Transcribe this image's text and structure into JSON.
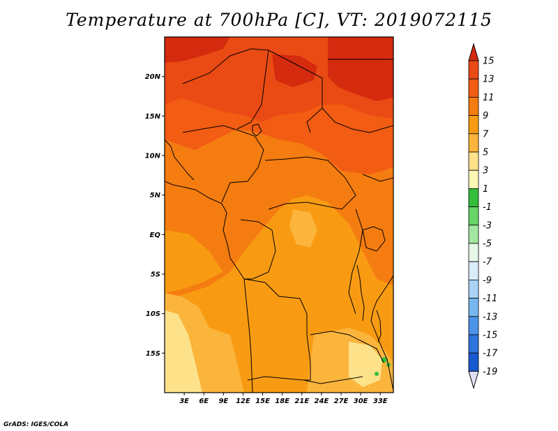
{
  "title": "Temperature at 700hPa [C], VT: 2019072115",
  "credit": "GrADS: IGES/COLA",
  "map": {
    "lon_range": [
      0,
      35
    ],
    "lat_range": [
      -20,
      25
    ],
    "lat_ticks": [
      {
        "lat": 20,
        "label": "20N"
      },
      {
        "lat": 15,
        "label": "15N"
      },
      {
        "lat": 10,
        "label": "10N"
      },
      {
        "lat": 5,
        "label": "5N"
      },
      {
        "lat": 0,
        "label": "EQ"
      },
      {
        "lat": -5,
        "label": "5S"
      },
      {
        "lat": -10,
        "label": "10S"
      },
      {
        "lat": -15,
        "label": "15S"
      }
    ],
    "lon_ticks": [
      {
        "lon": 3,
        "label": "3E"
      },
      {
        "lon": 6,
        "label": "6E"
      },
      {
        "lon": 9,
        "label": "9E"
      },
      {
        "lon": 12,
        "label": "12E"
      },
      {
        "lon": 15,
        "label": "15E"
      },
      {
        "lon": 18,
        "label": "18E"
      },
      {
        "lon": 21,
        "label": "21E"
      },
      {
        "lon": 24,
        "label": "24E"
      },
      {
        "lon": 27,
        "label": "27E"
      },
      {
        "lon": 30,
        "label": "30E"
      },
      {
        "lon": 33,
        "label": "33E"
      }
    ]
  },
  "colorbar": {
    "labels": [
      "15",
      "13",
      "11",
      "9",
      "7",
      "5",
      "3",
      "1",
      "-1",
      "-3",
      "-5",
      "-7",
      "-9",
      "-11",
      "-13",
      "-15",
      "-17",
      "-19"
    ],
    "top_arrow_color": "#d42a0e",
    "bottom_arrow_color": "#e0e0f8",
    "colors": [
      "#ea4a14",
      "#f25c13",
      "#f57c10",
      "#f89b12",
      "#fbb43c",
      "#fde28a",
      "#fdf7b6",
      "#33bd3a",
      "#66d466",
      "#a3e6a0",
      "#e6f7e6",
      "#d9ecfa",
      "#a9d3f6",
      "#78b6f0",
      "#4b94e8",
      "#2d74db",
      "#1659cf",
      "#0b3cb8",
      "#0a1f7f"
    ]
  },
  "fields": {
    "c15": "#d42a0e",
    "c13": "#ea4a14",
    "c11": "#f25c13",
    "c9": "#f57c10",
    "c7": "#f89b12",
    "c5": "#fbb43c",
    "c3": "#fde28a",
    "green": "#33bd3a"
  }
}
